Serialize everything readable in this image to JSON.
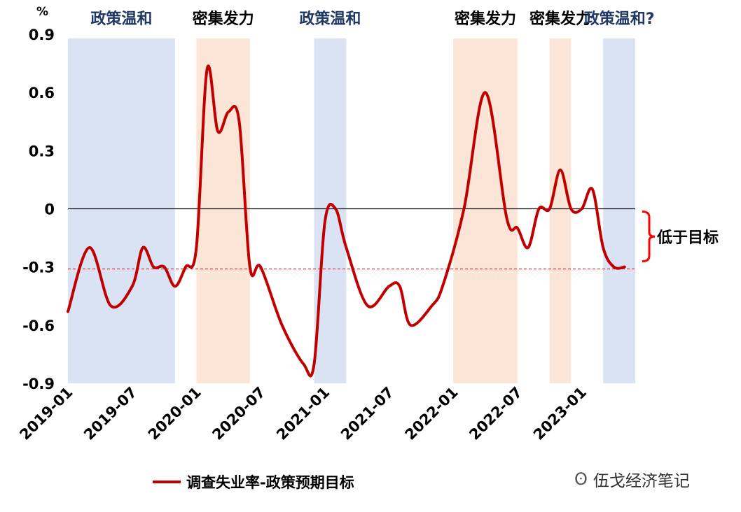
{
  "chart_data": {
    "type": "line",
    "unit_label": "%",
    "ylim": [
      -0.9,
      0.9
    ],
    "yticks": [
      0.9,
      0.6,
      0.3,
      0,
      -0.3,
      -0.6,
      -0.9
    ],
    "ytick_labels": [
      "0.9",
      "0.6",
      "0.3",
      "0",
      "-0.3",
      "-0.6",
      "-0.9"
    ],
    "xlim": [
      "2019-01",
      "2023-06"
    ],
    "xtick_labels": [
      "2019-01",
      "2019-07",
      "2020-01",
      "2020-07",
      "2021-01",
      "2021-07",
      "2022-01",
      "2022-07",
      "2023-01"
    ],
    "target_line_value": -0.31,
    "series": [
      {
        "name": "调查失业率-政策预期目标",
        "color": "#c00000",
        "points": [
          [
            "2019-01",
            -0.53
          ],
          [
            "2019-03",
            -0.2
          ],
          [
            "2019-05",
            -0.5
          ],
          [
            "2019-07",
            -0.4
          ],
          [
            "2019-08",
            -0.2
          ],
          [
            "2019-09",
            -0.3
          ],
          [
            "2019-10",
            -0.3
          ],
          [
            "2019-11",
            -0.4
          ],
          [
            "2019-12",
            -0.3
          ],
          [
            "2020-01",
            -0.2
          ],
          [
            "2020-02",
            0.72
          ],
          [
            "2020-03",
            0.4
          ],
          [
            "2020-04",
            0.5
          ],
          [
            "2020-05",
            0.45
          ],
          [
            "2020-06",
            -0.3
          ],
          [
            "2020-07",
            -0.3
          ],
          [
            "2020-09",
            -0.6
          ],
          [
            "2020-11",
            -0.8
          ],
          [
            "2020-12",
            -0.8
          ],
          [
            "2021-01",
            -0.07
          ],
          [
            "2021-02",
            0.0
          ],
          [
            "2021-03",
            -0.2
          ],
          [
            "2021-05",
            -0.5
          ],
          [
            "2021-07",
            -0.4
          ],
          [
            "2021-08",
            -0.4
          ],
          [
            "2021-09",
            -0.6
          ],
          [
            "2021-11",
            -0.5
          ],
          [
            "2021-12",
            -0.4
          ],
          [
            "2022-02",
            0.0
          ],
          [
            "2022-04",
            0.6
          ],
          [
            "2022-06",
            -0.05
          ],
          [
            "2022-07",
            -0.1
          ],
          [
            "2022-08",
            -0.2
          ],
          [
            "2022-09",
            0.0
          ],
          [
            "2022-10",
            0.0
          ],
          [
            "2022-11",
            0.2
          ],
          [
            "2022-12",
            0.0
          ],
          [
            "2023-01",
            0.0
          ],
          [
            "2023-02",
            0.1
          ],
          [
            "2023-03",
            -0.2
          ],
          [
            "2023-04",
            -0.3
          ],
          [
            "2023-05",
            -0.3
          ]
        ]
      }
    ],
    "bands": [
      {
        "label": "政策温和",
        "start": "2019-01",
        "end": "2019-11",
        "color": "#dae3f3",
        "label_color": "#1f3864"
      },
      {
        "label": "密集发力",
        "start": "2020-01",
        "end": "2020-06",
        "color": "#fbe5d6",
        "label_color": "#000000"
      },
      {
        "label": "政策温和",
        "start": "2020-12",
        "end": "2021-03",
        "color": "#dae3f3",
        "label_color": "#1f3864"
      },
      {
        "label": "密集发力",
        "start": "2022-01",
        "end": "2022-07",
        "color": "#fbe5d6",
        "label_color": "#000000"
      },
      {
        "label": "密集发力",
        "start": "2022-10",
        "end": "2022-12",
        "color": "#fbe5d6",
        "label_color": "#000000"
      },
      {
        "label": "政策温和?",
        "start": "2023-03",
        "end": "2023-06",
        "color": "#dae3f3",
        "label_color": "#1f3864"
      }
    ],
    "annotation": {
      "text": "低于目标",
      "color": "#ff0000"
    },
    "legend": {
      "text": "调查失业率-政策预期目标",
      "placement": "bottom"
    }
  },
  "watermark": {
    "icon": "wechat-icon",
    "text": "伍戈经济笔记"
  }
}
